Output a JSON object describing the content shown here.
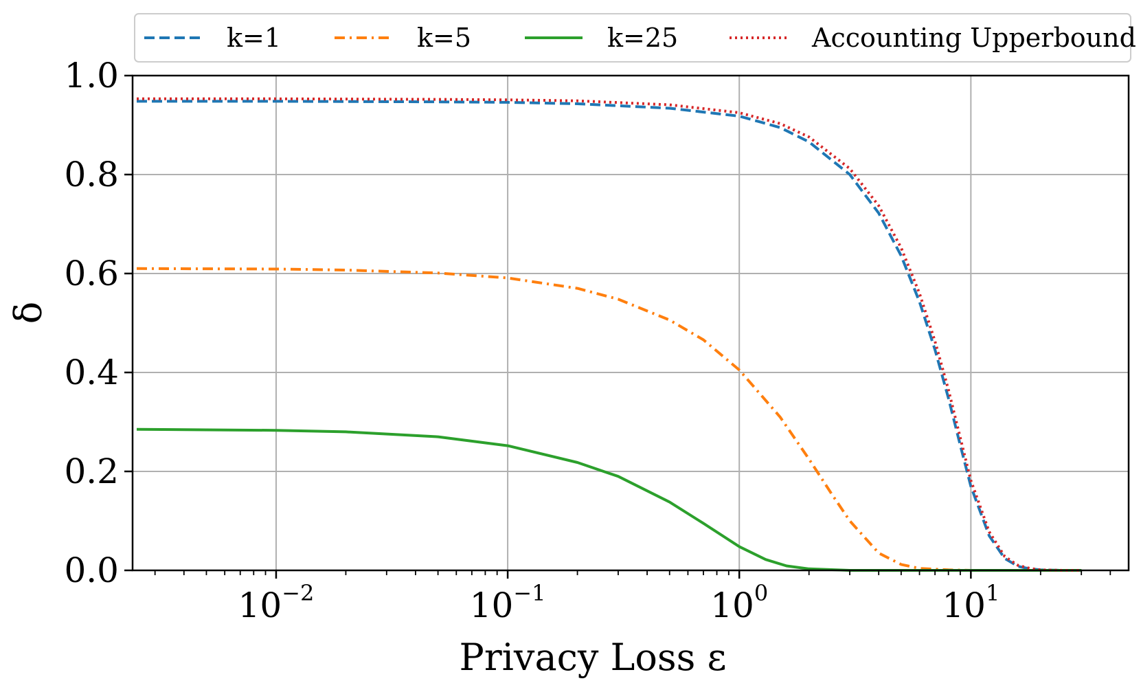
{
  "chart_data": {
    "type": "line",
    "xscale": "log",
    "xlim": [
      0.0024,
      48
    ],
    "ylim": [
      0.0,
      1.0
    ],
    "grid": true,
    "xlabel": "Privacy Loss ε",
    "ylabel": "δ",
    "x_ticks": [
      {
        "base": "10",
        "exp": "−2"
      },
      {
        "base": "10",
        "exp": "−1"
      },
      {
        "base": "10",
        "exp": "0"
      },
      {
        "base": "10",
        "exp": "1"
      }
    ],
    "y_ticks": [
      "0.0",
      "0.2",
      "0.4",
      "0.6",
      "0.8",
      "1.0"
    ],
    "legend": {
      "position": "top"
    },
    "series": [
      {
        "name": "k=1",
        "color": "#1f77b4",
        "style": "dashed",
        "x": [
          0.0025,
          0.01,
          0.05,
          0.1,
          0.2,
          0.5,
          1.0,
          1.5,
          2.0,
          3.0,
          4.0,
          5.0,
          6.0,
          7.0,
          8.0,
          9.0,
          10.0,
          12.0,
          14.0,
          16.0,
          18.0,
          20.0,
          25.0,
          30.0
        ],
        "y": [
          0.948,
          0.948,
          0.947,
          0.946,
          0.943,
          0.934,
          0.918,
          0.895,
          0.866,
          0.8,
          0.722,
          0.636,
          0.543,
          0.446,
          0.348,
          0.253,
          0.17,
          0.07,
          0.024,
          0.008,
          0.003,
          0.001,
          0.0,
          0.0
        ]
      },
      {
        "name": "k=5",
        "color": "#ff7f0e",
        "style": "dashdot",
        "x": [
          0.0025,
          0.01,
          0.02,
          0.05,
          0.1,
          0.2,
          0.3,
          0.5,
          0.7,
          1.0,
          1.5,
          2.0,
          2.5,
          3.0,
          4.0,
          5.0,
          6.0,
          8.0,
          10.0,
          15.0,
          20.0,
          30.0
        ],
        "y": [
          0.61,
          0.609,
          0.607,
          0.601,
          0.591,
          0.57,
          0.548,
          0.506,
          0.466,
          0.405,
          0.31,
          0.225,
          0.155,
          0.1,
          0.035,
          0.012,
          0.004,
          0.001,
          0.0,
          0.0,
          0.0,
          0.0
        ]
      },
      {
        "name": "k=25",
        "color": "#2ca02c",
        "style": "solid",
        "x": [
          0.0025,
          0.005,
          0.01,
          0.02,
          0.05,
          0.1,
          0.2,
          0.3,
          0.5,
          0.7,
          1.0,
          1.3,
          1.6,
          2.0,
          3.0,
          5.0,
          10.0,
          20.0,
          30.0
        ],
        "y": [
          0.285,
          0.284,
          0.283,
          0.28,
          0.27,
          0.252,
          0.218,
          0.19,
          0.138,
          0.095,
          0.048,
          0.022,
          0.009,
          0.003,
          0.0,
          0.0,
          0.0,
          0.0,
          0.0
        ]
      },
      {
        "name": "Accounting Upperbound",
        "color": "#d62728",
        "style": "dotted",
        "x": [
          0.0025,
          0.01,
          0.05,
          0.1,
          0.2,
          0.5,
          1.0,
          1.5,
          2.0,
          3.0,
          4.0,
          5.0,
          6.0,
          7.0,
          8.0,
          9.0,
          10.0,
          12.0,
          14.0,
          16.0,
          18.0,
          20.0,
          25.0,
          30.0
        ],
        "y": [
          0.953,
          0.953,
          0.952,
          0.951,
          0.949,
          0.941,
          0.925,
          0.903,
          0.876,
          0.812,
          0.737,
          0.652,
          0.56,
          0.463,
          0.365,
          0.268,
          0.182,
          0.078,
          0.028,
          0.01,
          0.004,
          0.001,
          0.0,
          0.0
        ]
      }
    ]
  }
}
